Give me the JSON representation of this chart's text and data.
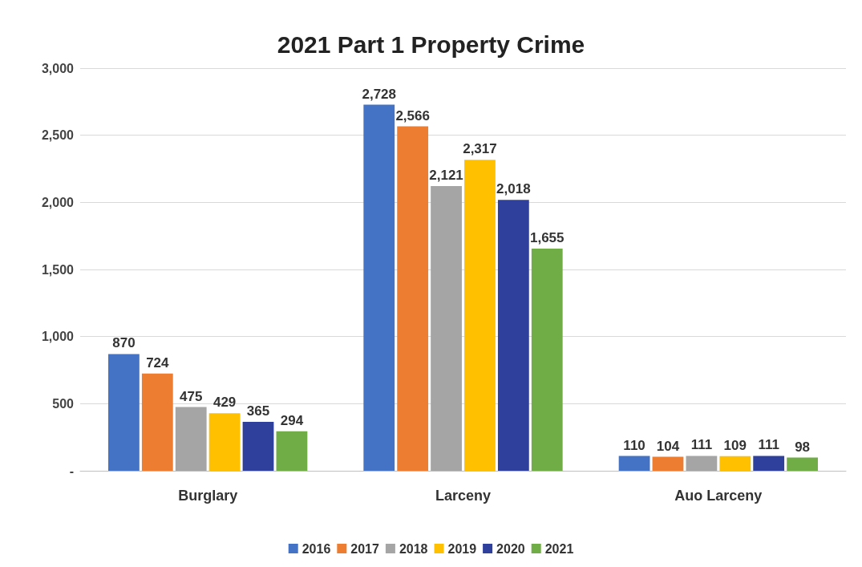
{
  "chart_data": {
    "type": "bar",
    "title": "2021 Part 1 Property Crime",
    "categories": [
      "Burglary",
      "Larceny",
      "Auo Larceny"
    ],
    "series": [
      {
        "name": "2016",
        "color": "#4472c4",
        "values": [
          870,
          2728,
          110
        ],
        "value_labels": [
          "870",
          "2,728",
          "110"
        ]
      },
      {
        "name": "2017",
        "color": "#ed7d31",
        "values": [
          724,
          2566,
          104
        ],
        "value_labels": [
          "724",
          "2,566",
          "104"
        ]
      },
      {
        "name": "2018",
        "color": "#a5a5a5",
        "values": [
          475,
          2121,
          111
        ],
        "value_labels": [
          "475",
          "2,121",
          "111"
        ]
      },
      {
        "name": "2019",
        "color": "#ffc000",
        "values": [
          429,
          2317,
          109
        ],
        "value_labels": [
          "429",
          "2,317",
          "109"
        ]
      },
      {
        "name": "2020",
        "color": "#2f3f9c",
        "values": [
          365,
          2018,
          111
        ],
        "value_labels": [
          "365",
          "2,018",
          "111"
        ]
      },
      {
        "name": "2021",
        "color": "#70ad47",
        "values": [
          294,
          1655,
          98
        ],
        "value_labels": [
          "294",
          "1,655",
          "98"
        ]
      }
    ],
    "ylim": [
      0,
      3000
    ],
    "yticks": [
      {
        "value": 0,
        "label": "-"
      },
      500,
      {
        "value": 1000,
        "label": "1,000"
      },
      {
        "value": 1500,
        "label": "1,500"
      },
      {
        "value": 2000,
        "label": "2,000"
      },
      {
        "value": 2500,
        "label": "2,500"
      },
      {
        "value": 3000,
        "label": "3,000"
      }
    ],
    "grid": "y",
    "legend": "bottom"
  }
}
